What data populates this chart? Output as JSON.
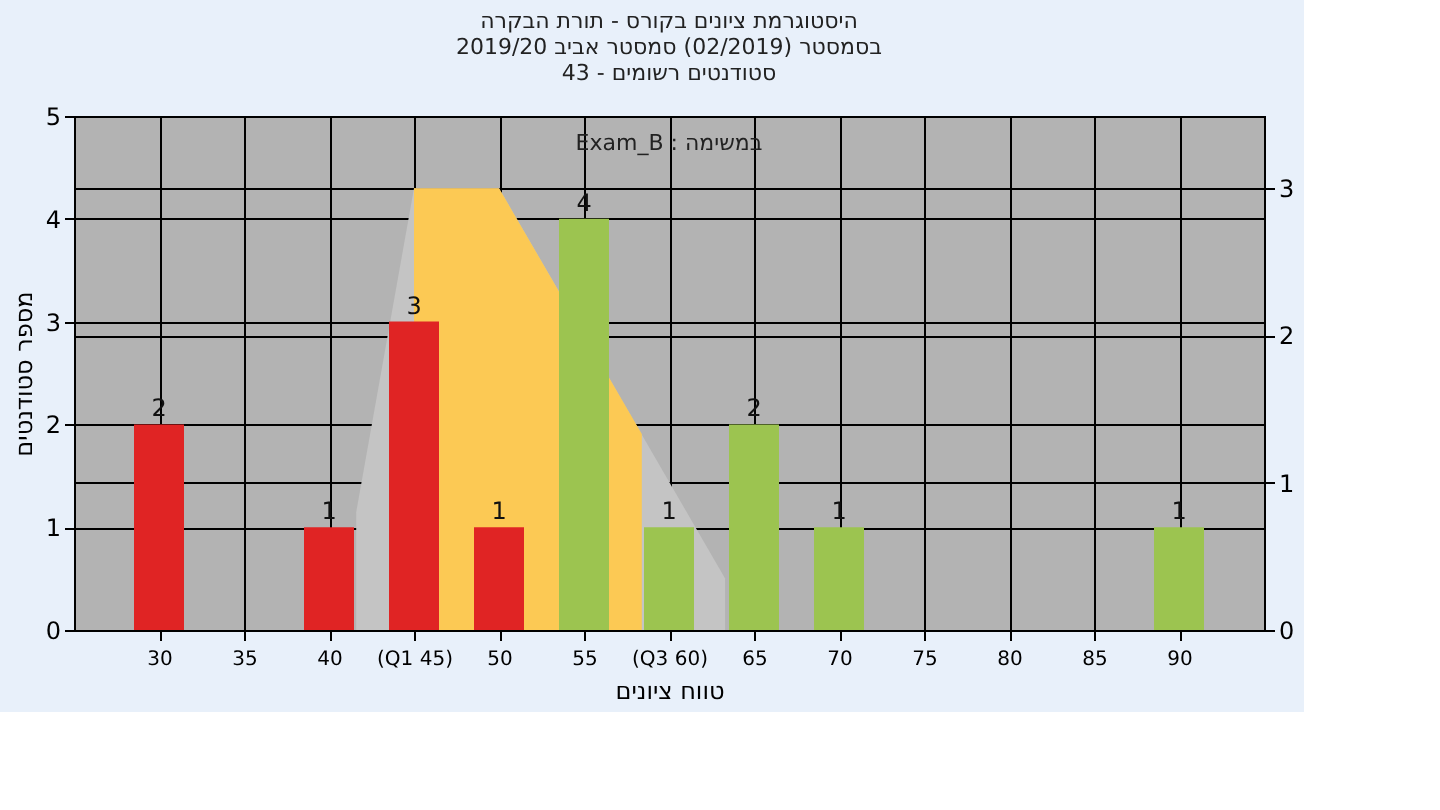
{
  "chart_data": {
    "type": "bar",
    "title": [
      "היסטוגרמת ציונים בקורס - תורת הבקרה",
      "בסמסטר  (02/2019)  סמסטר אביב 2019/20",
      "סטודנטים רשומים - 43"
    ],
    "xlabel": "טווח ציונים",
    "ylabel": "מספר סטודנטים",
    "annotations": [
      "Exam_B : במשימה"
    ],
    "x": [
      30,
      40,
      45,
      50,
      55,
      60,
      65,
      70,
      90
    ],
    "series": [
      {
        "type": "area",
        "axis": "y2",
        "color": "#c4c4c4",
        "x": [
          41.6,
          45,
          50,
          63.3
        ],
        "values": [
          0.8,
          3,
          3,
          0.35
        ]
      },
      {
        "type": "area",
        "axis": "y2",
        "color": "#fcc954",
        "x": [
          45,
          50,
          58.4
        ],
        "values": [
          3,
          3,
          1.33
        ]
      },
      {
        "type": "bar",
        "values": [
          2,
          1,
          3,
          1,
          4,
          1,
          2,
          1,
          1
        ],
        "value_labels": [
          "2",
          "1",
          "3",
          "1",
          "4",
          "1",
          "2",
          "1",
          "1"
        ],
        "colors": [
          "#e02424",
          "#e02424",
          "#e02424",
          "#e02424",
          "#9cc450",
          "#9cc450",
          "#9cc450",
          "#9cc450",
          "#9cc450"
        ]
      }
    ],
    "xlim": [
      25,
      95
    ],
    "xticks": [
      30,
      35,
      40,
      {
        "value": 45,
        "label": "(Q1 45)"
      },
      50,
      55,
      {
        "value": 60,
        "label": "(Q3 60)"
      },
      65,
      70,
      75,
      80,
      85,
      90
    ],
    "ylim": [
      0,
      5
    ],
    "yticks": [
      0,
      1,
      2,
      3,
      4,
      5
    ],
    "y2lim": [
      0,
      3.49
    ],
    "y2ticks": [
      0,
      1,
      2,
      3
    ],
    "grid": true
  }
}
